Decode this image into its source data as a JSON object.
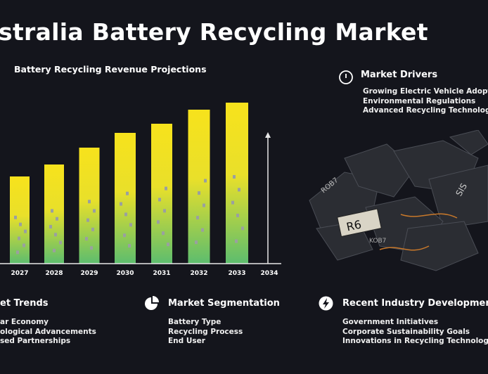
{
  "title": "stralia Battery Recycling Market",
  "chart_data": {
    "type": "bar",
    "title": "Battery Recycling Revenue Projections",
    "categories": [
      "2027",
      "2028",
      "2029",
      "2030",
      "2031",
      "2032",
      "2033"
    ],
    "x_ticks": [
      "2027",
      "2028",
      "2029",
      "2030",
      "2031",
      "2032",
      "2033",
      "2034"
    ],
    "values": [
      124,
      141,
      165,
      186,
      199,
      219,
      229
    ],
    "ylim": [
      0,
      240
    ],
    "grid": false,
    "bar_gradient": [
      "#f7e21c",
      "#5dbd6e"
    ]
  },
  "drivers": {
    "title": "Market Drivers",
    "icon": "alert-circle-icon",
    "items": [
      "Growing Electric Vehicle Adoptio",
      "Environmental Regulations",
      "Advanced Recycling Technologi"
    ]
  },
  "trends": {
    "title": "et Trends",
    "items": [
      "ar Economy",
      "ological Advancements",
      "sed Partnerships"
    ]
  },
  "segmentation": {
    "title": "Market Segmentation",
    "icon": "pie-chart-icon",
    "items": [
      "Battery Type",
      "Recycling Process",
      "End User"
    ]
  },
  "developments": {
    "title": "Recent Industry Development",
    "icon": "lightning-icon",
    "items": [
      "Government Initiatives",
      "Corporate Sustainability Goals",
      "Innovations in Recycling Technology"
    ]
  },
  "image_labels": [
    "R6",
    "KOB7",
    "SIS",
    "ROB7"
  ]
}
